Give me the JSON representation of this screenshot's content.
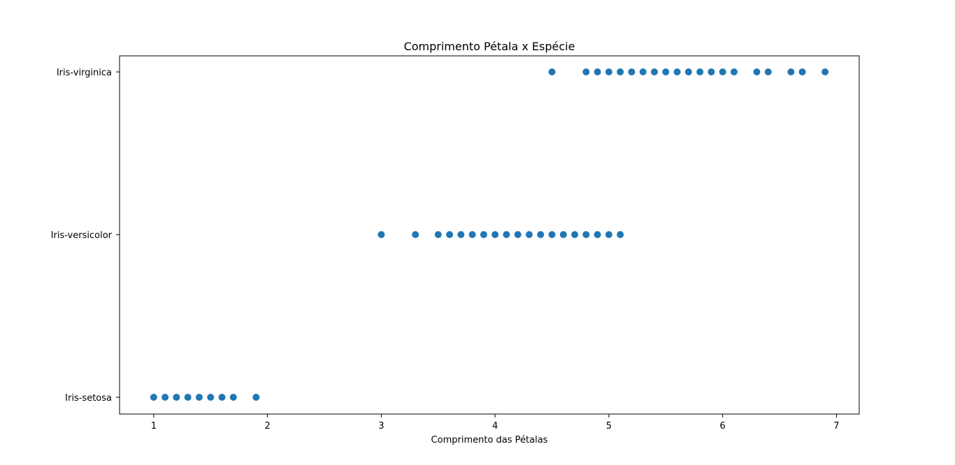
{
  "chart_data": {
    "type": "scatter",
    "title": "Comprimento Pétala x Espécie",
    "xlabel": "Comprimento das Pétalas",
    "ylabel": "",
    "xlim": [
      0.7,
      7.2
    ],
    "xticks": [
      1,
      2,
      3,
      4,
      5,
      6,
      7
    ],
    "yticks": [
      "Iris-setosa",
      "Iris-versicolor",
      "Iris-virginica"
    ],
    "grid": false,
    "marker_color": "#1f77b4",
    "series": [
      {
        "category": "Iris-setosa",
        "x": [
          1.0,
          1.1,
          1.2,
          1.3,
          1.4,
          1.5,
          1.6,
          1.7,
          1.9
        ]
      },
      {
        "category": "Iris-versicolor",
        "x": [
          3.0,
          3.3,
          3.5,
          3.6,
          3.7,
          3.8,
          3.9,
          4.0,
          4.1,
          4.2,
          4.3,
          4.4,
          4.5,
          4.6,
          4.7,
          4.8,
          4.9,
          5.0,
          5.1
        ]
      },
      {
        "category": "Iris-virginica",
        "x": [
          4.5,
          4.8,
          4.9,
          5.0,
          5.1,
          5.2,
          5.3,
          5.4,
          5.5,
          5.6,
          5.7,
          5.8,
          5.9,
          6.0,
          6.1,
          6.3,
          6.4,
          6.6,
          6.7,
          6.9
        ]
      }
    ]
  }
}
